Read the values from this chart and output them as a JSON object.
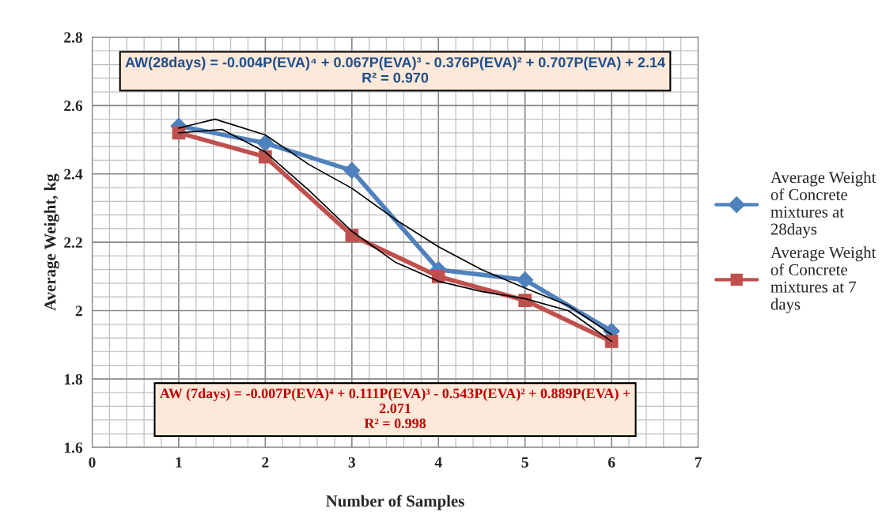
{
  "chart_data": {
    "type": "line",
    "xlabel": "Number of Samples",
    "ylabel": "Average Weight, kg",
    "x": [
      1,
      2,
      3,
      4,
      5,
      6
    ],
    "series": [
      {
        "name": "Average Weight of Concrete mixtures at 28days",
        "color": "#4f81bd",
        "marker": "diamond",
        "values": [
          2.54,
          2.49,
          2.41,
          2.12,
          2.09,
          1.94
        ]
      },
      {
        "name": "Average Weight of Concrete mixtures at 7 days",
        "color": "#c0504d",
        "marker": "square",
        "values": [
          2.52,
          2.45,
          2.22,
          2.1,
          2.03,
          1.91
        ]
      },
      {
        "type": "line",
        "color": "#000000",
        "marker": "none",
        "x": [
          1,
          1.42,
          2,
          2.5,
          3,
          3.5,
          4,
          4.5,
          5,
          5.5,
          6
        ],
        "values": [
          2.534,
          2.56,
          2.514,
          2.428,
          2.358,
          2.267,
          2.187,
          2.12,
          2.066,
          2.015,
          1.93
        ]
      },
      {
        "type": "line",
        "color": "#000000",
        "marker": "none",
        "x": [
          1,
          1.5,
          2,
          2.5,
          3,
          3.5,
          4,
          4.5,
          5,
          5.5,
          6
        ],
        "values": [
          2.52,
          2.53,
          2.464,
          2.353,
          2.232,
          2.142,
          2.086,
          2.056,
          2.035,
          2.0,
          1.91
        ]
      }
    ],
    "xlim": [
      0,
      7
    ],
    "xticks": [
      0,
      1,
      2,
      3,
      4,
      5,
      6,
      7
    ],
    "ylim": [
      1.6,
      2.8
    ],
    "yticks": [
      1.6,
      1.8,
      2,
      2.2,
      2.4,
      2.6,
      2.8
    ],
    "grid": true,
    "legend": "right",
    "line_style": "solid",
    "annotations": [
      "AW(28days) = -0.004P(EVA)⁴ + 0.067P(EVA)³ - 0.376P(EVA)² + 0.707P(EVA) + 2.14\nR² = 0.970",
      "AW (7days) = -0.007P(EVA)⁴ + 0.111P(EVA)³ - 0.543P(EVA)² + 0.889P(EVA) +\n2.071\nR² = 0.998"
    ]
  }
}
